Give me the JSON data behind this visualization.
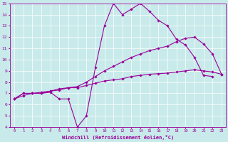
{
  "xlabel": "Windchill (Refroidissement éolien,°C)",
  "xlim": [
    -0.5,
    23.5
  ],
  "ylim": [
    4,
    15
  ],
  "yticks": [
    4,
    5,
    6,
    7,
    8,
    9,
    10,
    11,
    12,
    13,
    14,
    15
  ],
  "xticks": [
    0,
    1,
    2,
    3,
    4,
    5,
    6,
    7,
    8,
    9,
    10,
    11,
    12,
    13,
    14,
    15,
    16,
    17,
    18,
    19,
    20,
    21,
    22,
    23
  ],
  "background_color": "#c8eaea",
  "grid_color": "#ffffff",
  "line_color": "#990099",
  "line1_x": [
    0,
    1,
    2,
    3,
    4,
    5,
    6,
    7,
    8,
    9,
    10,
    11,
    12,
    13,
    14,
    15,
    16,
    17,
    18,
    19,
    20,
    21,
    22
  ],
  "line1_y": [
    6.5,
    7.0,
    7.0,
    7.0,
    7.1,
    6.5,
    6.5,
    4.0,
    5.0,
    9.3,
    13.0,
    15.0,
    14.0,
    14.5,
    15.0,
    14.3,
    13.5,
    13.0,
    11.8,
    11.3,
    10.2,
    8.6,
    8.5
  ],
  "line2_x": [
    0,
    1,
    2,
    3,
    4,
    5,
    6,
    7,
    8,
    9,
    10,
    11,
    12,
    13,
    14,
    15,
    16,
    17,
    18,
    19,
    20,
    21,
    22,
    23
  ],
  "line2_y": [
    6.5,
    7.0,
    7.0,
    7.0,
    7.2,
    7.4,
    7.5,
    7.6,
    8.0,
    8.5,
    9.0,
    9.4,
    9.8,
    10.2,
    10.5,
    10.8,
    11.0,
    11.2,
    11.6,
    11.9,
    12.0,
    11.4,
    10.5,
    8.7
  ],
  "line3_x": [
    0,
    1,
    2,
    3,
    4,
    5,
    6,
    7,
    8,
    9,
    10,
    11,
    12,
    13,
    14,
    15,
    16,
    17,
    18,
    19,
    20,
    21,
    22,
    23
  ],
  "line3_y": [
    6.5,
    6.8,
    7.0,
    7.1,
    7.2,
    7.3,
    7.5,
    7.5,
    7.7,
    7.9,
    8.1,
    8.2,
    8.3,
    8.5,
    8.6,
    8.7,
    8.75,
    8.8,
    8.9,
    9.0,
    9.1,
    9.0,
    8.9,
    8.7
  ]
}
